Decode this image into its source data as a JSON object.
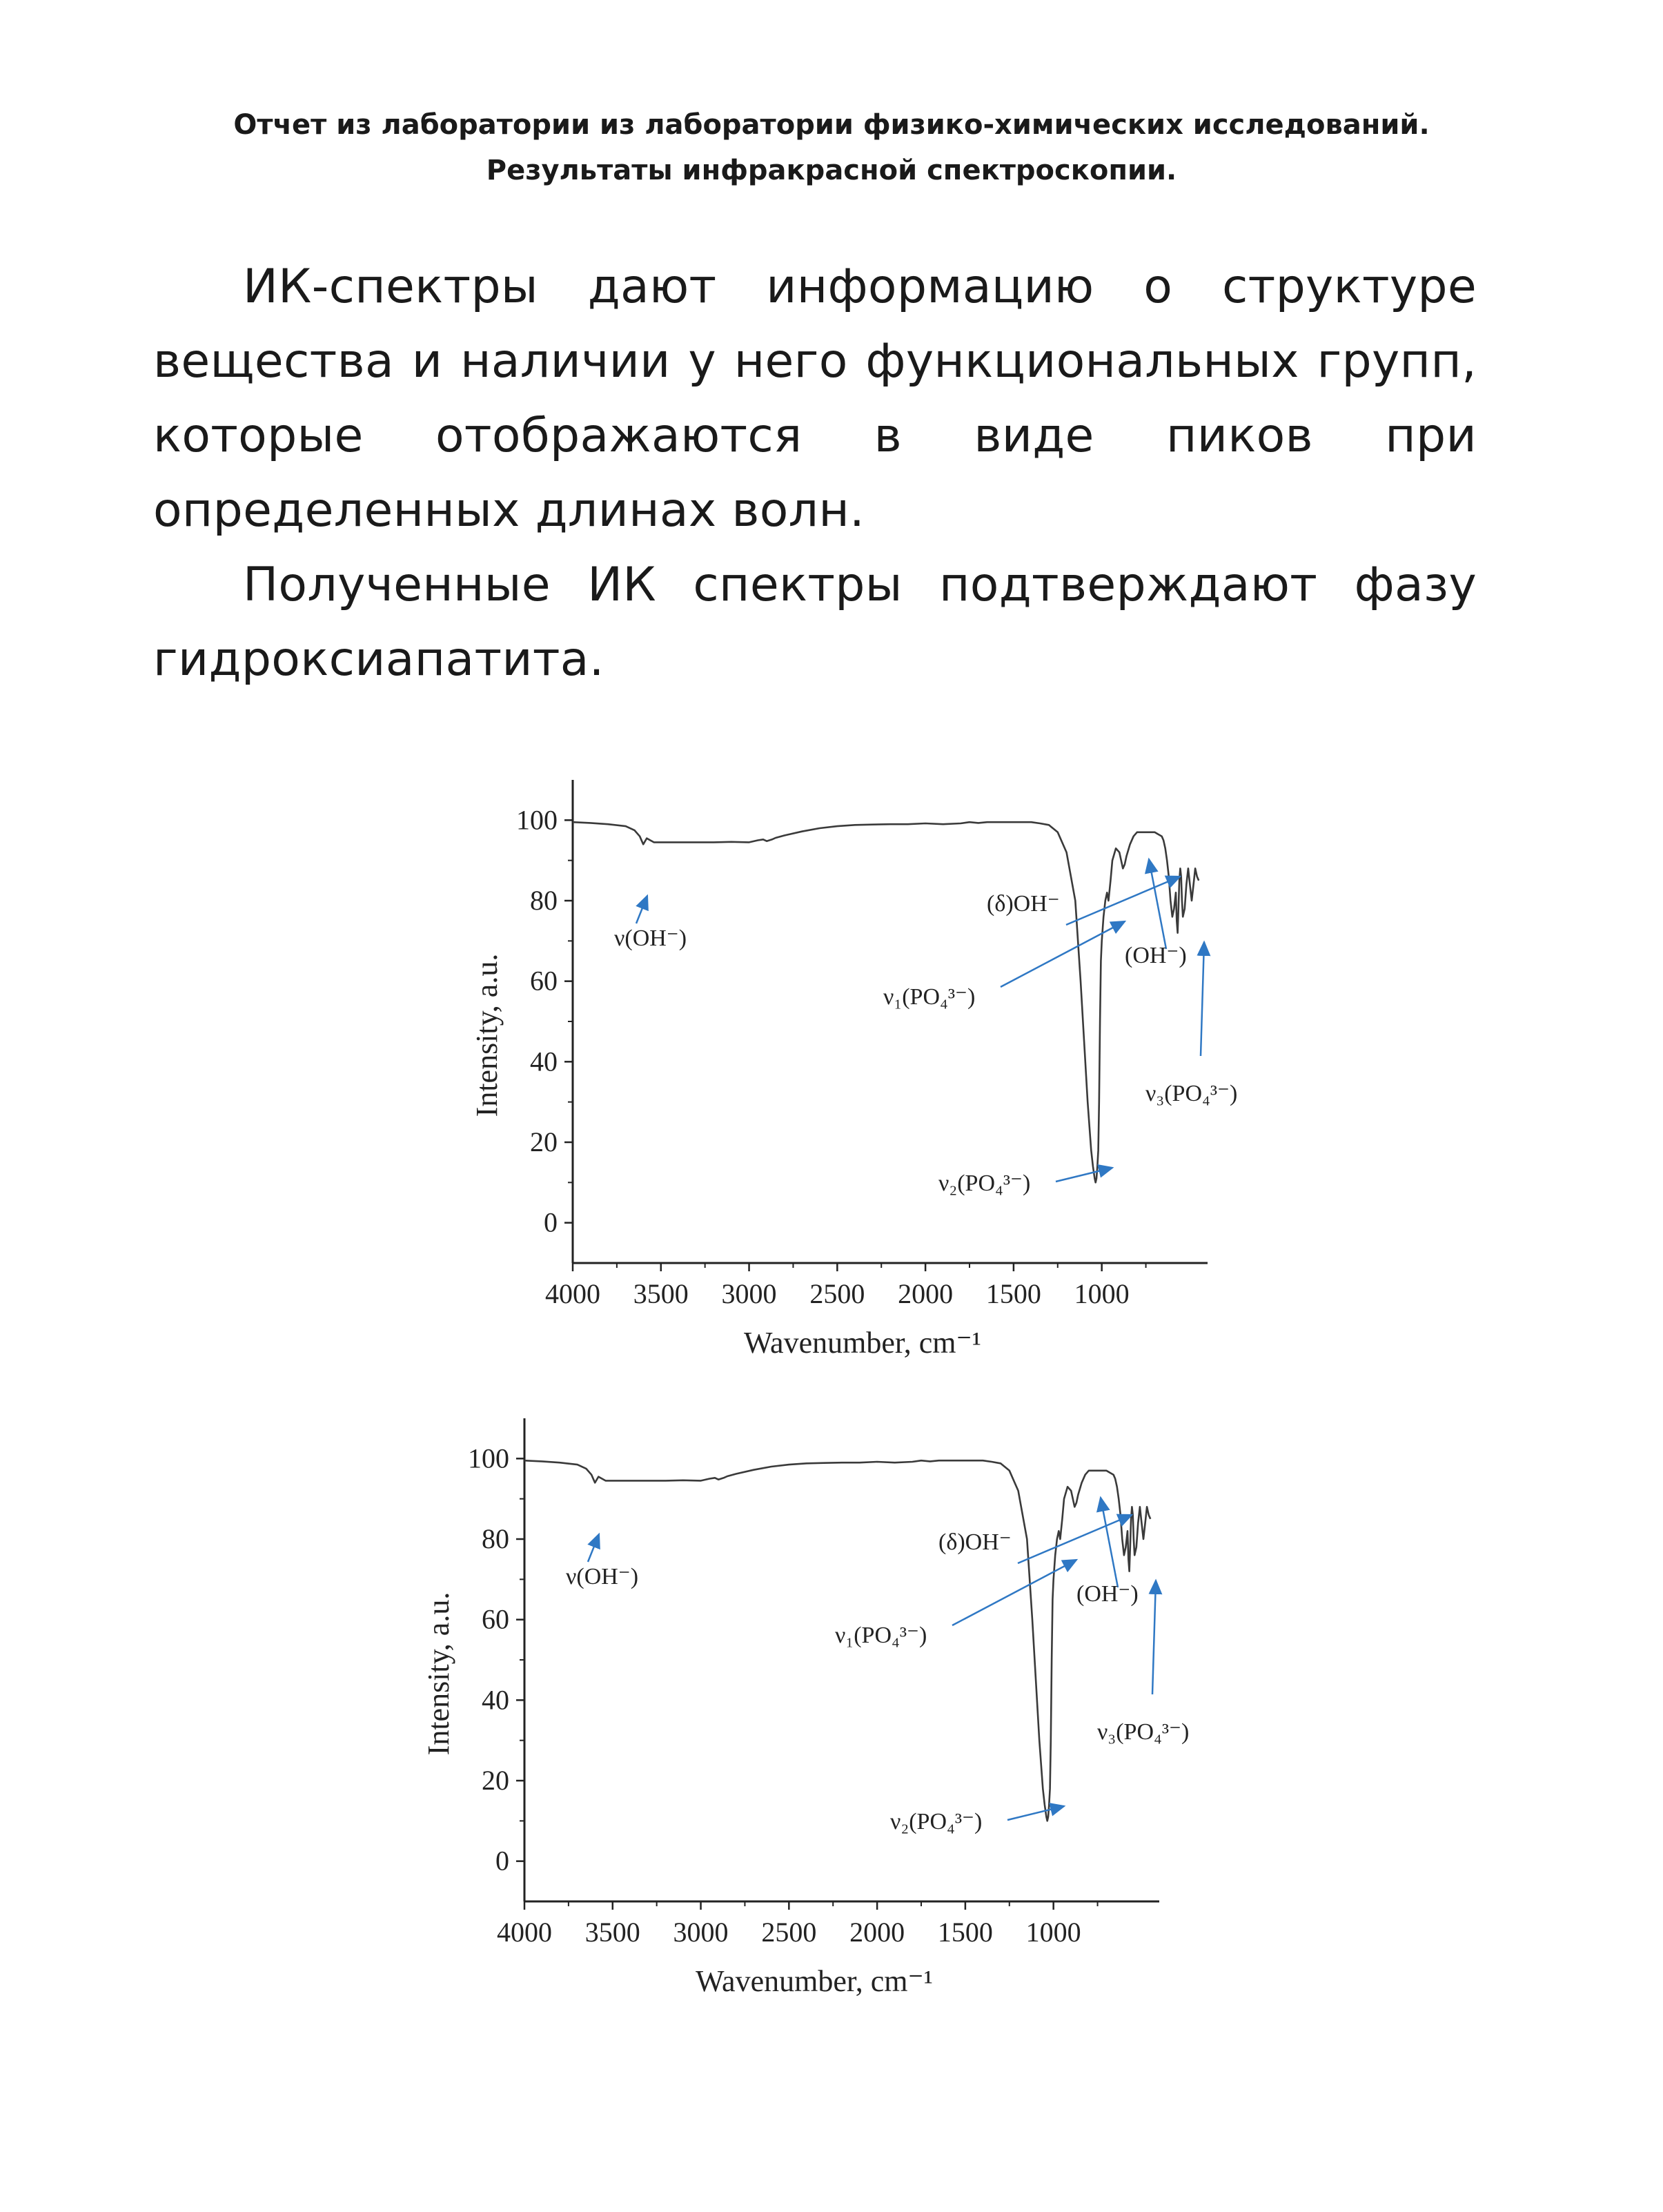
{
  "document": {
    "title_lines": [
      "Отчет из лаборатории из лаборатории физико-химических исследований.",
      "Результаты инфракрасной спектроскопии."
    ],
    "paragraphs": [
      "ИК-спектры дают информацию о структуре вещества и наличии у него функциональных групп, которые отображаются в виде пиков при определенных длинах волн.",
      "Полученные ИК спектры подтверждают фазу гидроксиапатита."
    ]
  },
  "colors": {
    "curve": "#3a3a3a",
    "axis": "#222222",
    "arrow": "#2f78c4",
    "text": "#1a1a1a"
  },
  "chart_data": [
    {
      "type": "line",
      "title": "",
      "xlabel": "Wavenumber, cm⁻¹",
      "ylabel": "Intensity, a.u.",
      "xlim": [
        4000,
        400
      ],
      "ylim": [
        -10,
        110
      ],
      "x_reversed": true,
      "xticks": [
        4000,
        3500,
        3000,
        2500,
        2000,
        1500,
        1000
      ],
      "yticks": [
        0,
        20,
        40,
        60,
        80,
        100
      ],
      "series": [
        {
          "x": [
            4000,
            3900,
            3800,
            3700,
            3650,
            3620,
            3600,
            3580,
            3560,
            3540,
            3500,
            3400,
            3300,
            3200,
            3100,
            3000,
            2950,
            2920,
            2900,
            2870,
            2850,
            2800,
            2700,
            2600,
            2500,
            2400,
            2300,
            2200,
            2100,
            2000,
            1900,
            1800,
            1750,
            1700,
            1650,
            1600,
            1500,
            1400,
            1350,
            1300,
            1250,
            1200,
            1150,
            1120,
            1100,
            1080,
            1060,
            1050,
            1040,
            1035,
            1030,
            1025,
            1020,
            1015,
            1010,
            1005,
            1000,
            990,
            980,
            970,
            962,
            955,
            950,
            940,
            920,
            900,
            880,
            870,
            860,
            840,
            820,
            800,
            780,
            760,
            740,
            720,
            700,
            680,
            660,
            650,
            640,
            630,
            620,
            610,
            600,
            590,
            580,
            575,
            570,
            565,
            560,
            555,
            550,
            545,
            540,
            530,
            520,
            510,
            500,
            490,
            480,
            470,
            460,
            450
          ],
          "y": [
            99.5,
            99.3,
            99,
            98.5,
            97.5,
            96,
            94,
            95.5,
            95,
            94.5,
            94.5,
            94.5,
            94.5,
            94.5,
            94.6,
            94.5,
            95,
            95.2,
            94.8,
            95.2,
            95.6,
            96.2,
            97.2,
            98,
            98.5,
            98.8,
            98.9,
            99,
            99,
            99.2,
            99,
            99.2,
            99.5,
            99.3,
            99.5,
            99.5,
            99.5,
            99.5,
            99.2,
            98.8,
            97,
            92,
            80,
            60,
            45,
            30,
            18,
            14,
            11,
            10,
            11,
            14,
            18,
            30,
            50,
            65,
            70,
            76,
            80,
            82,
            80,
            83,
            85,
            90,
            93,
            92,
            88,
            89,
            91,
            94,
            96,
            97,
            97,
            97,
            97,
            97,
            97,
            96.5,
            96,
            95,
            93,
            90,
            86,
            80,
            76,
            78,
            82,
            75,
            72,
            78,
            85,
            88,
            86,
            80,
            76,
            78,
            84,
            88,
            84,
            80,
            84,
            88,
            86,
            85
          ]
        }
      ],
      "annotations": [
        "ν(OH⁻)",
        "(δ)OH⁻",
        "ν₁(PO₄³⁻)",
        "(OH⁻)",
        "ν₃(PO₄³⁻)",
        "ν₂(PO₄³⁻)"
      ]
    },
    {
      "type": "line",
      "title": "",
      "xlabel": "Wavenumber, cm⁻¹",
      "ylabel": "Intensity, a.u.",
      "xlim": [
        4000,
        400
      ],
      "ylim": [
        -10,
        110
      ],
      "x_reversed": true,
      "xticks": [
        4000,
        3500,
        3000,
        2500,
        2000,
        1500,
        1000
      ],
      "yticks": [
        0,
        20,
        40,
        60,
        80,
        100
      ],
      "series": [
        {
          "x": [
            4000,
            3900,
            3800,
            3700,
            3650,
            3620,
            3600,
            3580,
            3560,
            3540,
            3500,
            3400,
            3300,
            3200,
            3100,
            3000,
            2950,
            2920,
            2900,
            2870,
            2850,
            2800,
            2700,
            2600,
            2500,
            2400,
            2300,
            2200,
            2100,
            2000,
            1900,
            1800,
            1750,
            1700,
            1650,
            1600,
            1500,
            1400,
            1350,
            1300,
            1250,
            1200,
            1150,
            1120,
            1100,
            1080,
            1060,
            1050,
            1040,
            1035,
            1030,
            1025,
            1020,
            1015,
            1010,
            1005,
            1000,
            990,
            980,
            970,
            962,
            955,
            950,
            940,
            920,
            900,
            880,
            870,
            860,
            840,
            820,
            800,
            780,
            760,
            740,
            720,
            700,
            680,
            660,
            650,
            640,
            630,
            620,
            610,
            600,
            590,
            580,
            575,
            570,
            565,
            560,
            555,
            550,
            545,
            540,
            530,
            520,
            510,
            500,
            490,
            480,
            470,
            460,
            450
          ],
          "y": [
            99.5,
            99.3,
            99,
            98.5,
            97.5,
            96,
            94,
            95.5,
            95,
            94.5,
            94.5,
            94.5,
            94.5,
            94.5,
            94.6,
            94.5,
            95,
            95.2,
            94.8,
            95.2,
            95.6,
            96.2,
            97.2,
            98,
            98.5,
            98.8,
            98.9,
            99,
            99,
            99.2,
            99,
            99.2,
            99.5,
            99.3,
            99.5,
            99.5,
            99.5,
            99.5,
            99.2,
            98.8,
            97,
            92,
            80,
            60,
            45,
            30,
            18,
            14,
            11,
            10,
            11,
            14,
            18,
            30,
            50,
            65,
            70,
            76,
            80,
            82,
            80,
            83,
            85,
            90,
            93,
            92,
            88,
            89,
            91,
            94,
            96,
            97,
            97,
            97,
            97,
            97,
            97,
            96.5,
            96,
            95,
            93,
            90,
            86,
            80,
            76,
            78,
            82,
            75,
            72,
            78,
            85,
            88,
            86,
            80,
            76,
            78,
            84,
            88,
            84,
            80,
            84,
            88,
            86,
            85
          ]
        }
      ],
      "annotations": [
        "ν(OH⁻)",
        "(δ)OH⁻",
        "ν₁(PO₄³⁻)",
        "(OH⁻)",
        "ν₃(PO₄³⁻)",
        "ν₂(PO₄³⁻)"
      ]
    }
  ]
}
